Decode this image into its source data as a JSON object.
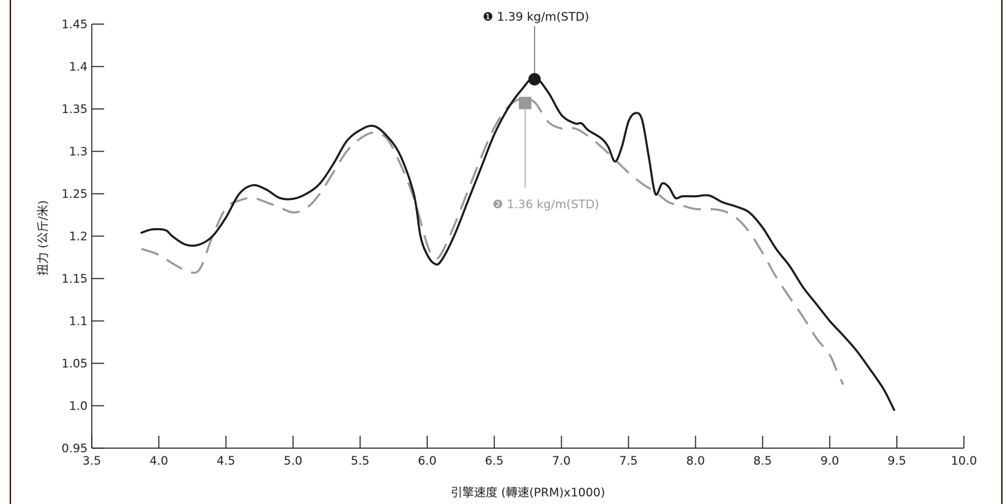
{
  "chart_data": {
    "type": "line",
    "xlabel": "引擎速度 (轉速(PRM)x1000)",
    "ylabel": "扭力 (公斤/米)",
    "xlim": [
      3.5,
      10.0
    ],
    "ylim": [
      0.95,
      1.45
    ],
    "x_ticks": [
      "3.5",
      "4.0",
      "4.5",
      "5.0",
      "5.5",
      "6.0",
      "6.5",
      "7.0",
      "7.5",
      "8.0",
      "8.5",
      "9.0",
      "9.5",
      "10.0"
    ],
    "y_ticks": [
      "0.95",
      "1.0",
      "1.05",
      "1.1",
      "1.15",
      "1.2",
      "1.25",
      "1.3",
      "1.35",
      "1.4",
      "1.45"
    ],
    "grid": false,
    "series": [
      {
        "style": "solid",
        "color": "#1a1a1a",
        "x": [
          3.87,
          3.95,
          4.05,
          4.1,
          4.2,
          4.3,
          4.4,
          4.5,
          4.6,
          4.7,
          4.8,
          4.9,
          5.0,
          5.1,
          5.2,
          5.3,
          5.4,
          5.5,
          5.6,
          5.7,
          5.8,
          5.9,
          5.95,
          6.0,
          6.05,
          6.1,
          6.2,
          6.3,
          6.4,
          6.5,
          6.6,
          6.7,
          6.8,
          6.9,
          7.0,
          7.1,
          7.15,
          7.2,
          7.3,
          7.35,
          7.4,
          7.45,
          7.5,
          7.55,
          7.6,
          7.65,
          7.7,
          7.75,
          7.8,
          7.85,
          7.9,
          8.0,
          8.1,
          8.2,
          8.3,
          8.4,
          8.5,
          8.6,
          8.7,
          8.8,
          8.9,
          9.0,
          9.1,
          9.2,
          9.3,
          9.4,
          9.48
        ],
        "y": [
          1.204,
          1.208,
          1.207,
          1.2,
          1.19,
          1.19,
          1.2,
          1.222,
          1.25,
          1.26,
          1.255,
          1.245,
          1.244,
          1.25,
          1.262,
          1.285,
          1.312,
          1.325,
          1.33,
          1.318,
          1.295,
          1.25,
          1.2,
          1.178,
          1.168,
          1.17,
          1.2,
          1.24,
          1.28,
          1.32,
          1.35,
          1.372,
          1.387,
          1.37,
          1.343,
          1.333,
          1.333,
          1.325,
          1.315,
          1.305,
          1.288,
          1.305,
          1.335,
          1.345,
          1.338,
          1.295,
          1.25,
          1.262,
          1.258,
          1.245,
          1.247,
          1.247,
          1.248,
          1.24,
          1.235,
          1.228,
          1.21,
          1.185,
          1.165,
          1.14,
          1.12,
          1.1,
          1.083,
          1.065,
          1.043,
          1.02,
          0.995
        ]
      },
      {
        "style": "dashed",
        "color": "#999999",
        "x": [
          3.87,
          4.0,
          4.1,
          4.2,
          4.3,
          4.4,
          4.5,
          4.6,
          4.7,
          4.8,
          4.9,
          5.0,
          5.1,
          5.2,
          5.3,
          5.4,
          5.5,
          5.6,
          5.7,
          5.8,
          5.9,
          6.0,
          6.05,
          6.1,
          6.2,
          6.3,
          6.4,
          6.5,
          6.6,
          6.7,
          6.8,
          6.9,
          7.0,
          7.1,
          7.2,
          7.3,
          7.4,
          7.5,
          7.6,
          7.7,
          7.8,
          7.9,
          8.0,
          8.1,
          8.2,
          8.3,
          8.4,
          8.5,
          8.6,
          8.7,
          8.8,
          8.9,
          9.0,
          9.05,
          9.1
        ],
        "y": [
          1.185,
          1.178,
          1.168,
          1.16,
          1.16,
          1.2,
          1.233,
          1.242,
          1.245,
          1.24,
          1.234,
          1.228,
          1.233,
          1.25,
          1.275,
          1.3,
          1.315,
          1.322,
          1.315,
          1.285,
          1.245,
          1.19,
          1.175,
          1.178,
          1.212,
          1.252,
          1.292,
          1.328,
          1.352,
          1.362,
          1.358,
          1.335,
          1.327,
          1.327,
          1.318,
          1.305,
          1.29,
          1.275,
          1.262,
          1.252,
          1.24,
          1.236,
          1.232,
          1.232,
          1.23,
          1.222,
          1.205,
          1.18,
          1.152,
          1.128,
          1.105,
          1.08,
          1.06,
          1.042,
          1.025
        ]
      }
    ],
    "annotations": [
      {
        "text": "1.39 kg/m(STD)",
        "marker_number": "❶",
        "x": 6.8,
        "y": 1.385,
        "color": "#1a1a1a",
        "marker": "circle"
      },
      {
        "text": "1.36 kg/m(STD)",
        "marker_number": "❷",
        "x": 6.73,
        "y": 1.357,
        "color": "#999999",
        "marker": "square"
      }
    ]
  }
}
